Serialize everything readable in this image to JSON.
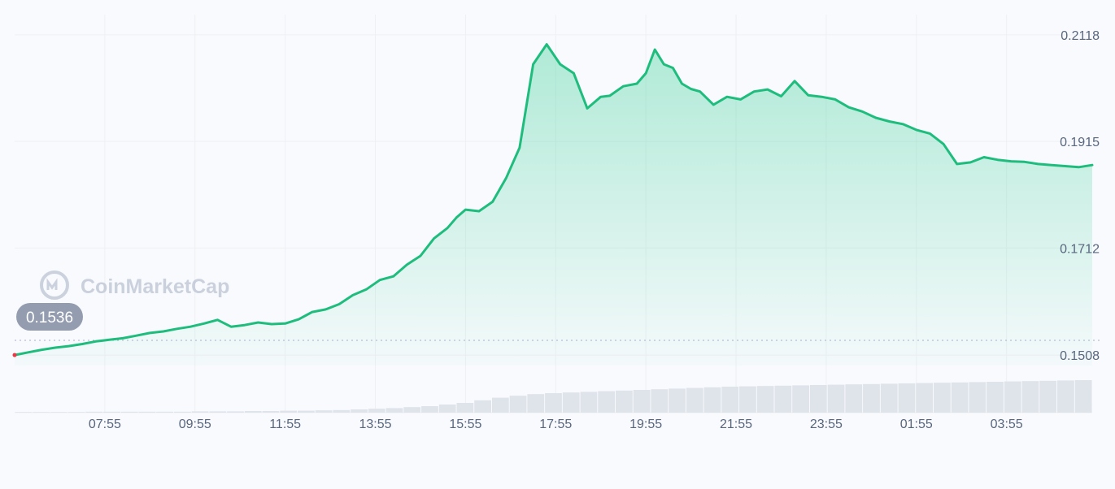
{
  "watermark": "CoinMarketCap",
  "colors": {
    "line": "#1fbd7d",
    "area_top": "#16c784",
    "grid": "#eef0f4",
    "volume": "#dfe3ea",
    "label_pill": "#8892a6",
    "start_dot": "#ea3943"
  },
  "chart_data": {
    "type": "area",
    "start_price_label": "0.1536",
    "baseline_price": 0.1536,
    "y_ticks": [
      "0.2118",
      "0.1915",
      "0.1712",
      "0.1508"
    ],
    "x_ticks": [
      "07:55",
      "09:55",
      "11:55",
      "13:55",
      "15:55",
      "17:55",
      "19:55",
      "21:55",
      "23:55",
      "01:55",
      "03:55"
    ],
    "ylim": [
      0.1488,
      0.2138
    ],
    "xlim": [
      0,
      23.9
    ],
    "grid": true,
    "series": [
      {
        "x": [
          0,
          0.3,
          0.6,
          0.9,
          1.2,
          1.5,
          1.8,
          2.1,
          2.4,
          2.7,
          3.0,
          3.3,
          3.6,
          3.9,
          4.2,
          4.5,
          4.8,
          5.1,
          5.4,
          5.7,
          6.0,
          6.3,
          6.6,
          6.9,
          7.2,
          7.5,
          7.8,
          8.1,
          8.4,
          8.7,
          9.0,
          9.3,
          9.6,
          9.8,
          10.0,
          10.3,
          10.6,
          10.9,
          11.2,
          11.5,
          11.8,
          12.1,
          12.4,
          12.7,
          13.0,
          13.2,
          13.5,
          13.8,
          14.0,
          14.2,
          14.4,
          14.6,
          14.8,
          15.0,
          15.2,
          15.5,
          15.8,
          16.1,
          16.4,
          16.7,
          17.0,
          17.3,
          17.6,
          17.9,
          18.2,
          18.5,
          18.8,
          19.1,
          19.4,
          19.7,
          20.0,
          20.3,
          20.6,
          20.9,
          21.2,
          21.5,
          21.8,
          22.1,
          22.4,
          22.7,
          23.0,
          23.3,
          23.6,
          23.9
        ],
        "y": [
          0.1508,
          0.1513,
          0.1518,
          0.1522,
          0.1525,
          0.1529,
          0.1534,
          0.1537,
          0.154,
          0.1545,
          0.155,
          0.1553,
          0.1558,
          0.1562,
          0.1568,
          0.1575,
          0.1562,
          0.1565,
          0.157,
          0.1567,
          0.1568,
          0.1576,
          0.159,
          0.1595,
          0.1605,
          0.1622,
          0.1633,
          0.1651,
          0.1658,
          0.168,
          0.1697,
          0.173,
          0.175,
          0.177,
          0.1785,
          0.1782,
          0.18,
          0.1845,
          0.1903,
          0.2062,
          0.21,
          0.2062,
          0.2045,
          0.1978,
          0.2,
          0.2002,
          0.202,
          0.2025,
          0.2045,
          0.209,
          0.2062,
          0.2055,
          0.2025,
          0.2015,
          0.201,
          0.1985,
          0.2,
          0.1995,
          0.201,
          0.2014,
          0.2001,
          0.203,
          0.2003,
          0.2,
          0.1995,
          0.198,
          0.1972,
          0.196,
          0.1953,
          0.1948,
          0.1937,
          0.193,
          0.191,
          0.1872,
          0.1875,
          0.1885,
          0.188,
          0.1877,
          0.1876,
          0.1872,
          0.187,
          0.1868,
          0.1866,
          0.187
        ]
      }
    ],
    "volume": [
      0.02,
      0.02,
      0.02,
      0.02,
      0.03,
      0.03,
      0.03,
      0.03,
      0.03,
      0.03,
      0.04,
      0.04,
      0.04,
      0.05,
      0.05,
      0.06,
      0.06,
      0.07,
      0.08,
      0.1,
      0.12,
      0.14,
      0.17,
      0.2,
      0.25,
      0.3,
      0.38,
      0.46,
      0.52,
      0.57,
      0.6,
      0.62,
      0.64,
      0.66,
      0.68,
      0.7,
      0.72,
      0.74,
      0.76,
      0.78,
      0.8,
      0.81,
      0.82,
      0.83,
      0.84,
      0.85,
      0.86,
      0.87,
      0.88,
      0.89,
      0.9,
      0.91,
      0.92,
      0.93,
      0.94,
      0.95,
      0.96,
      0.97,
      0.98,
      0.99,
      1.0
    ]
  }
}
